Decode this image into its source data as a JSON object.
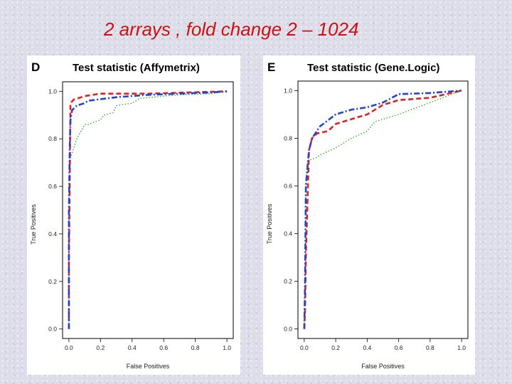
{
  "slide": {
    "title": "2 arrays , fold change 2 – 1024"
  },
  "chart_data": [
    {
      "type": "line",
      "panel_letter": "D",
      "title": "Test statistic (Affymetrix)",
      "xlabel": "False Positives",
      "ylabel": "True Positives",
      "xlim": [
        0,
        1
      ],
      "ylim": [
        0,
        1
      ],
      "xticks": [
        "0.0",
        "0.2",
        "0.4",
        "0.6",
        "0.8",
        "1.0"
      ],
      "yticks": [
        "0.0",
        "0.2",
        "0.4",
        "0.6",
        "0.8",
        "1.0"
      ],
      "grid": false,
      "series": [
        {
          "color": "#2244cc",
          "style": "dashdot",
          "x": [
            0,
            0,
            0.005,
            0.01,
            0.02,
            0.05,
            0.1,
            0.12,
            0.3,
            0.5,
            0.7,
            0.9,
            1.0
          ],
          "y": [
            0,
            0.5,
            0.75,
            0.88,
            0.92,
            0.94,
            0.95,
            0.96,
            0.975,
            0.985,
            0.99,
            0.995,
            1.0
          ]
        },
        {
          "color": "#dd2222",
          "style": "dashed",
          "x": [
            0,
            0,
            0.005,
            0.01,
            0.03,
            0.1,
            0.2,
            0.5,
            1.0
          ],
          "y": [
            0,
            0.3,
            0.6,
            0.95,
            0.965,
            0.98,
            0.99,
            0.99,
            1.0
          ]
        },
        {
          "color": "#33aa33",
          "style": "dotted",
          "x": [
            0,
            0,
            0.01,
            0.03,
            0.05,
            0.1,
            0.12,
            0.2,
            0.22,
            0.28,
            0.3,
            0.4,
            0.45,
            0.6,
            0.7,
            0.9,
            1.0
          ],
          "y": [
            0,
            0.6,
            0.72,
            0.76,
            0.8,
            0.86,
            0.86,
            0.88,
            0.9,
            0.91,
            0.94,
            0.95,
            0.97,
            0.98,
            0.985,
            0.99,
            1.0
          ]
        }
      ]
    },
    {
      "type": "line",
      "panel_letter": "E",
      "title": "Test statistic (Gene.Logic)",
      "xlabel": "False Positives",
      "ylabel": "True Positives",
      "xlim": [
        0,
        1
      ],
      "ylim": [
        0,
        1
      ],
      "xticks": [
        "0.0",
        "0.2",
        "0.4",
        "0.6",
        "0.8",
        "1.0"
      ],
      "yticks": [
        "0.0",
        "0.2",
        "0.4",
        "0.6",
        "0.8",
        "1.0"
      ],
      "grid": false,
      "series": [
        {
          "color": "#2244cc",
          "style": "dashdot",
          "x": [
            0,
            0.005,
            0.01,
            0.03,
            0.05,
            0.1,
            0.2,
            0.3,
            0.4,
            0.5,
            0.6,
            0.8,
            1.0
          ],
          "y": [
            0.0,
            0.2,
            0.6,
            0.75,
            0.8,
            0.85,
            0.9,
            0.92,
            0.93,
            0.95,
            0.985,
            0.99,
            1.0
          ]
        },
        {
          "color": "#dd2222",
          "style": "dashed",
          "x": [
            0,
            0.005,
            0.01,
            0.03,
            0.05,
            0.08,
            0.15,
            0.2,
            0.3,
            0.4,
            0.45,
            0.5,
            0.6,
            0.8,
            1.0
          ],
          "y": [
            0.0,
            0.08,
            0.3,
            0.75,
            0.8,
            0.82,
            0.83,
            0.86,
            0.88,
            0.9,
            0.92,
            0.94,
            0.96,
            0.97,
            1.0
          ]
        },
        {
          "color": "#33aa33",
          "style": "dotted",
          "x": [
            0,
            0.005,
            0.01,
            0.02,
            0.04,
            0.08,
            0.1,
            0.2,
            0.3,
            0.4,
            0.45,
            0.5,
            0.6,
            0.8,
            1.0
          ],
          "y": [
            0.0,
            0.2,
            0.6,
            0.7,
            0.71,
            0.72,
            0.73,
            0.76,
            0.8,
            0.83,
            0.87,
            0.88,
            0.9,
            0.95,
            1.0
          ]
        }
      ]
    }
  ]
}
